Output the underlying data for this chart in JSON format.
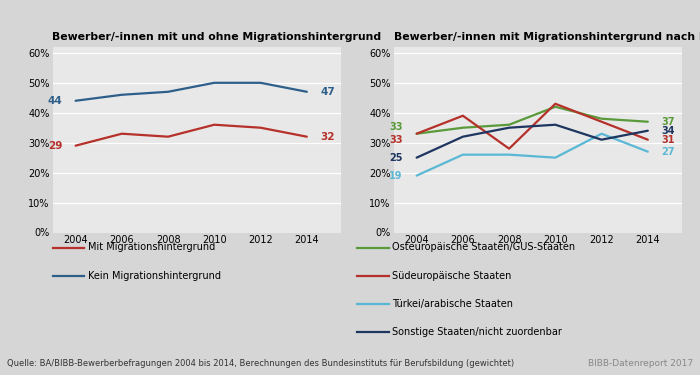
{
  "years": [
    2004,
    2006,
    2008,
    2010,
    2012,
    2014
  ],
  "left": {
    "title": "Bewerber/-innen mit und ohne Migrationshintergrund",
    "mit_migration": [
      29,
      33,
      32,
      36,
      35,
      32
    ],
    "kein_migration": [
      44,
      46,
      47,
      50,
      50,
      47
    ],
    "mit_color": "#b5312a",
    "kein_color": "#2d5f8a",
    "mit_label": "Mit Migrationshintergrund",
    "kein_label": "Kein Migrationshintergrund",
    "mit_start_label": "29",
    "mit_end_label": "32",
    "kein_start_label": "44",
    "kein_end_label": "47"
  },
  "right": {
    "title": "Bewerber/-innen mit Migrationshintergrund nach Herkunftsregionen",
    "osteuropaeisch": [
      33,
      35,
      36,
      42,
      38,
      37
    ],
    "suedeuropaeisch": [
      33,
      39,
      28,
      43,
      37,
      31
    ],
    "tuerkei": [
      19,
      26,
      26,
      25,
      33,
      27
    ],
    "sonstige": [
      25,
      32,
      35,
      36,
      31,
      34
    ],
    "osteuropaeisch_color": "#5a9a3a",
    "suedeuropaeisch_color": "#b5312a",
    "tuerkei_color": "#5ab8d4",
    "sonstige_color": "#1e3560",
    "osteuropaeisch_label": "Osteuropäische Staaten/GUS-Staaten",
    "suedeuropaeisch_label": "Südeuropäische Staaten",
    "tuerkei_label": "Türkei/arabische Staaten",
    "sonstige_label": "Sonstige Staaten/nicht zuordenbar",
    "ost_start": "33",
    "sued_start": "33",
    "tuerk_start": "19",
    "sonst_start": "25",
    "ost_end": "37",
    "sued_end": "31",
    "tuerk_end": "27",
    "sonst_end": "34"
  },
  "ylim": [
    0,
    62
  ],
  "yticks": [
    0,
    10,
    20,
    30,
    40,
    50,
    60
  ],
  "background_color": "#d6d6d6",
  "plot_bg_color": "#e8e8e8",
  "footer_text": "Quelle: BA/BIBB-Bewerberbefragungen 2004 bis 2014, Berechnungen des Bundesinstituts für Berufsbildung (gewichtet)",
  "footer_right": "BIBB-Datenreport 2017",
  "title_fontsize": 7.8,
  "tick_fontsize": 7,
  "legend_fontsize": 7,
  "footer_fontsize": 6.0
}
